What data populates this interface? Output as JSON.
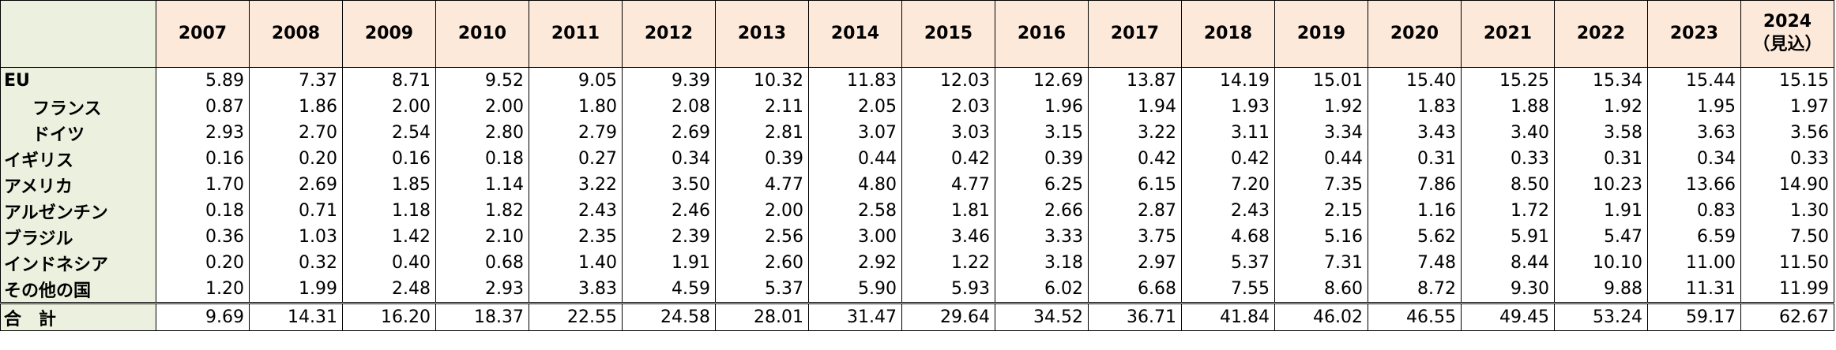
{
  "header": {
    "years": [
      "2007",
      "2008",
      "2009",
      "2010",
      "2011",
      "2012",
      "2013",
      "2014",
      "2015",
      "2016",
      "2017",
      "2018",
      "2019",
      "2020",
      "2021",
      "2022",
      "2023",
      "2024"
    ],
    "last_note": "（見込）"
  },
  "table": {
    "rows": [
      {
        "label": "EU",
        "values": [
          "5.89",
          "7.37",
          "8.71",
          "9.52",
          "9.05",
          "9.39",
          "10.32",
          "11.83",
          "12.03",
          "12.69",
          "13.87",
          "14.19",
          "15.01",
          "15.40",
          "15.25",
          "15.34",
          "15.44",
          "15.15"
        ]
      },
      {
        "label": "フランス",
        "values": [
          "0.87",
          "1.86",
          "2.00",
          "2.00",
          "1.80",
          "2.08",
          "2.11",
          "2.05",
          "2.03",
          "1.96",
          "1.94",
          "1.93",
          "1.92",
          "1.83",
          "1.88",
          "1.92",
          "1.95",
          "1.97"
        ]
      },
      {
        "label": "ドイツ",
        "values": [
          "2.93",
          "2.70",
          "2.54",
          "2.80",
          "2.79",
          "2.69",
          "2.81",
          "3.07",
          "3.03",
          "3.15",
          "3.22",
          "3.11",
          "3.34",
          "3.43",
          "3.40",
          "3.58",
          "3.63",
          "3.56"
        ]
      },
      {
        "label": "イギリス",
        "values": [
          "0.16",
          "0.20",
          "0.16",
          "0.18",
          "0.27",
          "0.34",
          "0.39",
          "0.44",
          "0.42",
          "0.39",
          "0.42",
          "0.42",
          "0.44",
          "0.31",
          "0.33",
          "0.31",
          "0.34",
          "0.33"
        ]
      },
      {
        "label": "アメリカ",
        "values": [
          "1.70",
          "2.69",
          "1.85",
          "1.14",
          "3.22",
          "3.50",
          "4.77",
          "4.80",
          "4.77",
          "6.25",
          "6.15",
          "7.20",
          "7.35",
          "7.86",
          "8.50",
          "10.23",
          "13.66",
          "14.90"
        ]
      },
      {
        "label": "アルゼンチン",
        "values": [
          "0.18",
          "0.71",
          "1.18",
          "1.82",
          "2.43",
          "2.46",
          "2.00",
          "2.58",
          "1.81",
          "2.66",
          "2.87",
          "2.43",
          "2.15",
          "1.16",
          "1.72",
          "1.91",
          "0.83",
          "1.30"
        ]
      },
      {
        "label": "ブラジル",
        "values": [
          "0.36",
          "1.03",
          "1.42",
          "2.10",
          "2.35",
          "2.39",
          "2.56",
          "3.00",
          "3.46",
          "3.33",
          "3.75",
          "4.68",
          "5.16",
          "5.62",
          "5.91",
          "5.47",
          "6.59",
          "7.50"
        ]
      },
      {
        "label": "インドネシア",
        "values": [
          "0.20",
          "0.32",
          "0.40",
          "0.68",
          "1.40",
          "1.91",
          "2.60",
          "2.92",
          "1.22",
          "3.18",
          "2.97",
          "5.37",
          "7.31",
          "7.48",
          "8.44",
          "10.10",
          "11.00",
          "11.50"
        ]
      },
      {
        "label": "その他の国",
        "values": [
          "1.20",
          "1.99",
          "2.48",
          "2.93",
          "3.83",
          "4.59",
          "5.37",
          "5.90",
          "5.93",
          "6.02",
          "6.68",
          "7.55",
          "8.60",
          "8.72",
          "9.30",
          "9.88",
          "11.31",
          "11.99"
        ]
      },
      {
        "label": "合　計",
        "values": [
          "9.69",
          "14.31",
          "16.20",
          "18.37",
          "22.55",
          "24.58",
          "28.01",
          "31.47",
          "29.64",
          "34.52",
          "36.71",
          "41.84",
          "46.02",
          "46.55",
          "49.45",
          "53.24",
          "59.17",
          "62.67"
        ]
      }
    ]
  }
}
